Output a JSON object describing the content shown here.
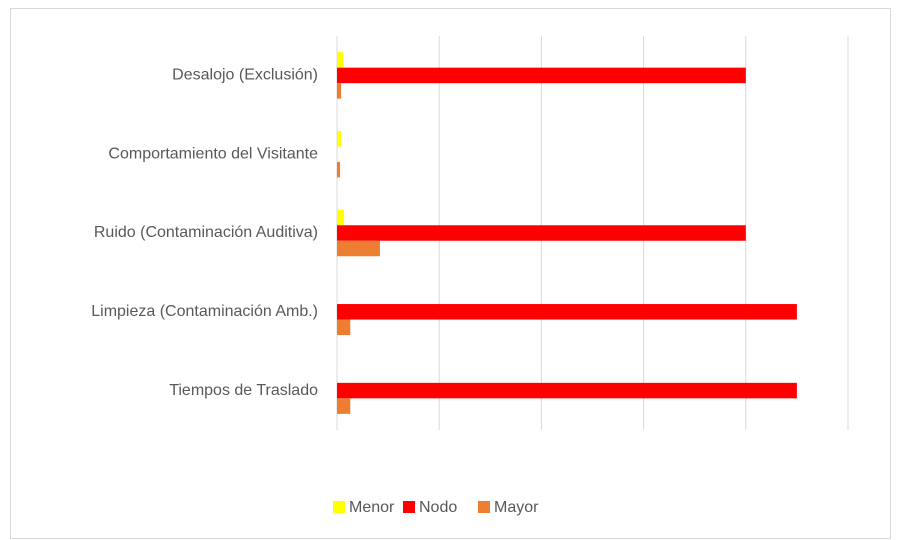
{
  "chart_data": {
    "type": "barh",
    "categories": [
      "Desalojo (Exclusión)",
      "Comportamiento del Visitante",
      "Ruido (Contaminación Auditiva)",
      "Limpieza (Contaminación Amb.)",
      "Tiempos de Traslado"
    ],
    "series": [
      {
        "name": "Menor",
        "color": "#ffff00",
        "values": [
          0.06,
          0.04,
          0.07,
          0,
          0
        ]
      },
      {
        "name": "Nodo",
        "color": "#ff0000",
        "values": [
          4.0,
          0,
          4.0,
          4.5,
          4.5
        ]
      },
      {
        "name": "Mayor",
        "color": "#ed7d31",
        "values": [
          0.04,
          0.03,
          0.42,
          0.13,
          0.13
        ]
      }
    ],
    "xlim": [
      0,
      5
    ],
    "xticks": [
      0,
      1,
      2,
      3,
      4,
      5
    ],
    "grid": true,
    "legend": "bottom"
  }
}
